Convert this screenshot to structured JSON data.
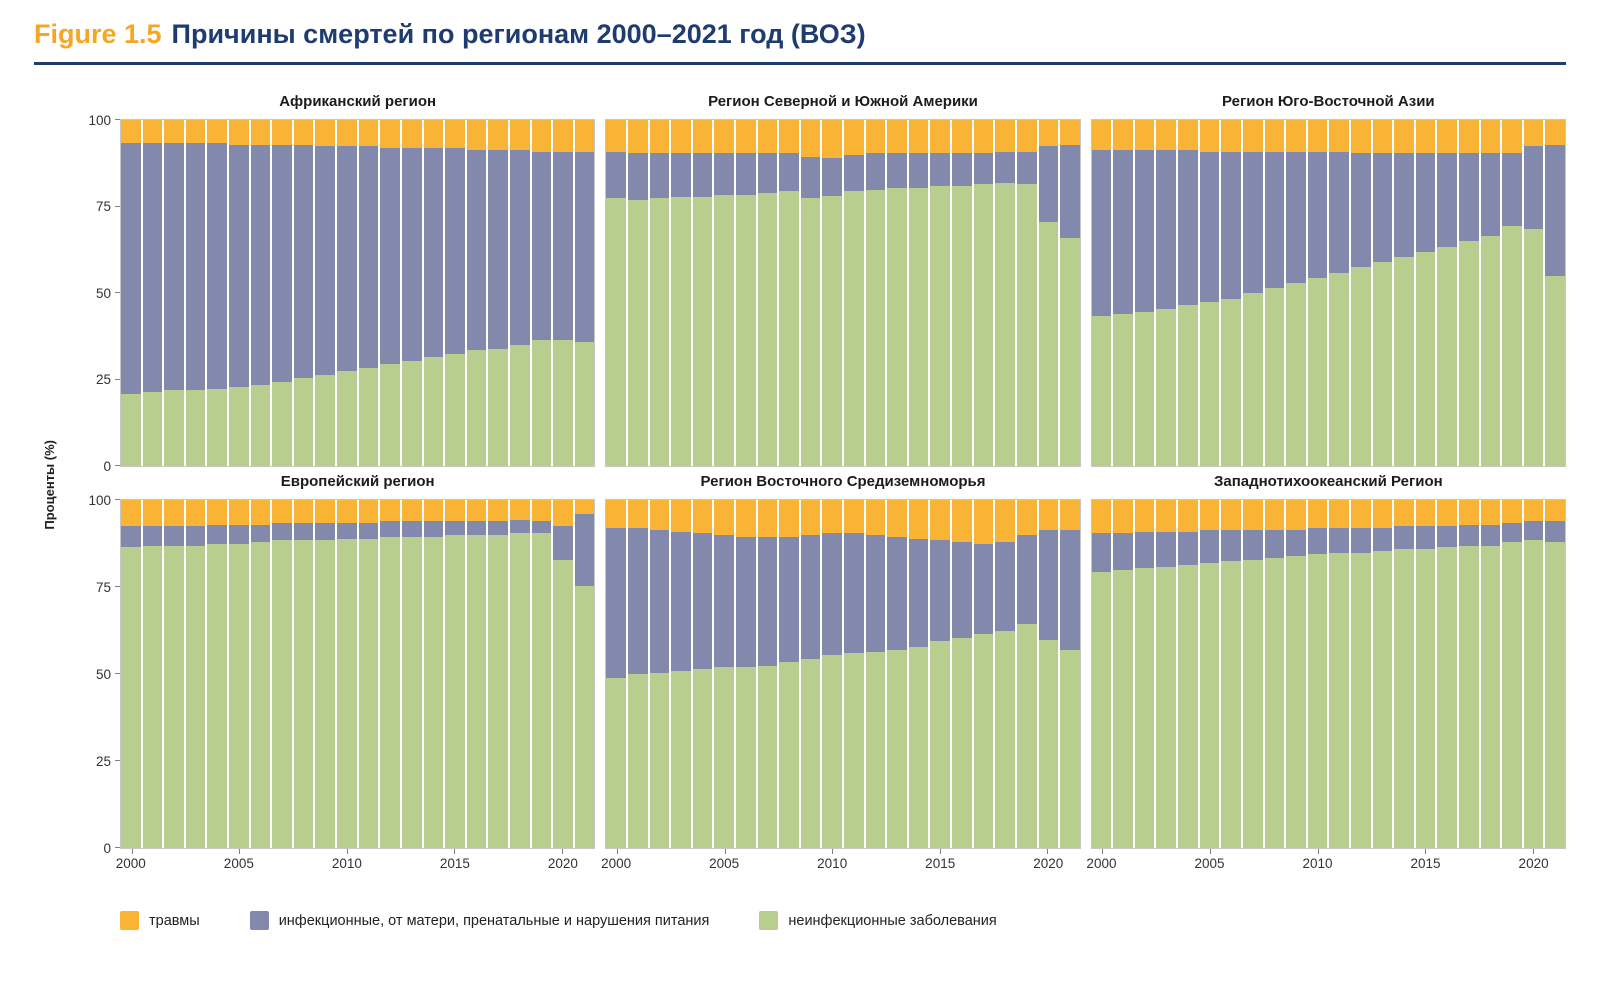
{
  "header": {
    "figure_label": "Figure 1.5",
    "title": "Причины смертей по регионам 2000–2021 год (ВОЗ)"
  },
  "colors": {
    "figure_label_orange": "#F5A623",
    "title_navy": "#1F3C71",
    "divider_navy": "#1F3C71"
  },
  "axis": {
    "y_title": "Проценты (%)"
  },
  "legend": [
    {
      "label": "травмы",
      "color": "#F9B435"
    },
    {
      "label": "инфекционные, от матери, пренатальные и нарушения питания",
      "color": "#8289AC"
    },
    {
      "label": "неинфекционные заболевания",
      "color": "#B8CE8F"
    }
  ],
  "chart_data": {
    "type": "bar",
    "stacked": true,
    "stack_unit": "percent",
    "ylim": [
      0,
      100
    ],
    "y_ticks": [
      0,
      25,
      50,
      75,
      100
    ],
    "x_ticks": [
      2000,
      2005,
      2010,
      2015,
      2020
    ],
    "x": [
      2000,
      2001,
      2002,
      2003,
      2004,
      2005,
      2006,
      2007,
      2008,
      2009,
      2010,
      2011,
      2012,
      2013,
      2014,
      2015,
      2016,
      2017,
      2018,
      2019,
      2020,
      2021
    ],
    "series_colors": {
      "неинфекционные заболевания": "#B8CE8F",
      "инфекционные, от матери, пренатальные и нарушения питания": "#8289AC",
      "травмы": "#F9B435"
    },
    "panels": [
      {
        "title": "Африканский регион",
        "series": [
          {
            "name": "неинфекционные заболевания",
            "values": [
              21,
              21.5,
              22,
              22,
              22.5,
              23,
              23.5,
              24.5,
              25.5,
              26.5,
              27.5,
              28.5,
              29.5,
              30.5,
              31.5,
              32.5,
              33.5,
              34,
              35,
              36.5,
              36.5,
              36
            ]
          },
          {
            "name": "инфекционные, от матери, пренатальные и нарушения питания",
            "values": [
              72.5,
              72,
              71.5,
              71.5,
              71,
              70,
              69.5,
              68.5,
              67.5,
              66,
              65,
              64,
              62.5,
              61.5,
              60.5,
              59.5,
              58,
              57.5,
              56.5,
              54.5,
              54.5,
              55
            ]
          },
          {
            "name": "травмы",
            "values": [
              6.5,
              6.5,
              6.5,
              6.5,
              6.5,
              7,
              7,
              7,
              7,
              7.5,
              7.5,
              7.5,
              8,
              8,
              8,
              8,
              8.5,
              8.5,
              8.5,
              9,
              9,
              9
            ]
          }
        ]
      },
      {
        "title": "Регион Северной и Южной Америки",
        "series": [
          {
            "name": "неинфекционные заболевания",
            "values": [
              77.5,
              77,
              77.5,
              78,
              78,
              78.5,
              78.5,
              79,
              79.5,
              77.5,
              78,
              79.5,
              80,
              80.5,
              80.5,
              81,
              81,
              81.5,
              82,
              81.5,
              70.5,
              66
            ]
          },
          {
            "name": "инфекционные, от матери, пренатальные и нарушения питания",
            "values": [
              13.5,
              13.5,
              13,
              12.5,
              12.5,
              12,
              12,
              11.5,
              11,
              12,
              11,
              10.5,
              10.5,
              10,
              10,
              9.5,
              9.5,
              9,
              9,
              9.5,
              22,
              27
            ]
          },
          {
            "name": "травмы",
            "values": [
              9,
              9.5,
              9.5,
              9.5,
              9.5,
              9.5,
              9.5,
              9.5,
              9.5,
              10.5,
              11,
              10,
              9.5,
              9.5,
              9.5,
              9.5,
              9.5,
              9.5,
              9,
              9,
              7.5,
              7
            ]
          }
        ]
      },
      {
        "title": "Регион Юго-Восточной Азии",
        "series": [
          {
            "name": "неинфекционные заболевания",
            "values": [
              43.5,
              44,
              44.5,
              45.5,
              46.5,
              47.5,
              48.5,
              50,
              51.5,
              53,
              54.5,
              56,
              57.5,
              59,
              60.5,
              62,
              63.5,
              65,
              66.5,
              69.5,
              68.5,
              55
            ]
          },
          {
            "name": "инфекционные, от матери, пренатальные и нарушения питания",
            "values": [
              48,
              47.5,
              47,
              46,
              45,
              43.5,
              42.5,
              41,
              39.5,
              38,
              36.5,
              35,
              33,
              31.5,
              30,
              28.5,
              27,
              25.5,
              24,
              21,
              24,
              38
            ]
          },
          {
            "name": "травмы",
            "values": [
              8.5,
              8.5,
              8.5,
              8.5,
              8.5,
              9,
              9,
              9,
              9,
              9,
              9,
              9,
              9.5,
              9.5,
              9.5,
              9.5,
              9.5,
              9.5,
              9.5,
              9.5,
              7.5,
              7
            ]
          }
        ]
      },
      {
        "title": "Европейский регион",
        "series": [
          {
            "name": "неинфекционные заболевания",
            "values": [
              86.5,
              87,
              87,
              87,
              87.5,
              87.5,
              88,
              88.5,
              88.5,
              88.5,
              89,
              89,
              89.5,
              89.5,
              89.5,
              90,
              90,
              90,
              90.5,
              90.5,
              83,
              75.5
            ]
          },
          {
            "name": "инфекционные, от матери, пренатальные и нарушения питания",
            "values": [
              6,
              5.5,
              5.5,
              5.5,
              5.5,
              5.5,
              5,
              5,
              5,
              5,
              4.5,
              4.5,
              4.5,
              4.5,
              4.5,
              4,
              4,
              4,
              4,
              3.5,
              9.5,
              20.5
            ]
          },
          {
            "name": "травмы",
            "values": [
              7.5,
              7.5,
              7.5,
              7.5,
              7,
              7,
              7,
              6.5,
              6.5,
              6.5,
              6.5,
              6.5,
              6,
              6,
              6,
              6,
              6,
              6,
              5.5,
              6,
              7.5,
              4
            ]
          }
        ]
      },
      {
        "title": "Регион Восточного Средиземноморья",
        "series": [
          {
            "name": "неинфекционные заболевания",
            "values": [
              49,
              50,
              50.5,
              51,
              51.5,
              52,
              52,
              52.5,
              53.5,
              54.5,
              55.5,
              56,
              56.5,
              57,
              58,
              59.5,
              60.5,
              61.5,
              62.5,
              64.5,
              60,
              57
            ]
          },
          {
            "name": "инфекционные, от матери, пренатальные и нарушения питания",
            "values": [
              43,
              42,
              41,
              40,
              39,
              38,
              37.5,
              37,
              36,
              35.5,
              35,
              34.5,
              33.5,
              32.5,
              31,
              29,
              27.5,
              26,
              25.5,
              25.5,
              31.5,
              34.5
            ]
          },
          {
            "name": "травмы",
            "values": [
              8,
              8,
              8.5,
              9,
              9.5,
              10,
              10.5,
              10.5,
              10.5,
              10,
              9.5,
              9.5,
              10,
              10.5,
              11,
              11.5,
              12,
              12.5,
              12,
              10,
              8.5,
              8.5
            ]
          }
        ]
      },
      {
        "title": "Западнотихоокеанский Регион",
        "series": [
          {
            "name": "неинфекционные заболевания",
            "values": [
              79.5,
              80,
              80.5,
              81,
              81.5,
              82,
              82.5,
              83,
              83.5,
              84,
              84.5,
              85,
              85,
              85.5,
              86,
              86,
              86.5,
              87,
              87,
              88,
              88.5,
              88
            ]
          },
          {
            "name": "инфекционные, от матери, пренатальные и нарушения питания",
            "values": [
              11,
              10.5,
              10.5,
              10,
              9.5,
              9.5,
              9,
              8.5,
              8,
              7.5,
              7.5,
              7,
              7,
              6.5,
              6.5,
              6.5,
              6,
              6,
              6,
              5.5,
              5.5,
              6
            ]
          },
          {
            "name": "травмы",
            "values": [
              9.5,
              9.5,
              9,
              9,
              9,
              8.5,
              8.5,
              8.5,
              8.5,
              8.5,
              8,
              8,
              8,
              8,
              7.5,
              7.5,
              7.5,
              7,
              7,
              6.5,
              6,
              6
            ]
          }
        ]
      }
    ]
  }
}
